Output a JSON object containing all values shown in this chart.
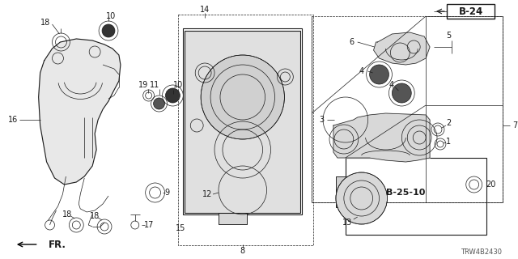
{
  "bg_color": "#ffffff",
  "diagram_code": "TRW4B2430",
  "b24_label": "B-24",
  "b25_label": "B-25-10",
  "fr_label": "FR.",
  "line_color": "#1a1a1a",
  "label_color": "#111111",
  "font_size_small": 6.5,
  "font_size_label": 7.0,
  "font_size_bold": 8.0
}
